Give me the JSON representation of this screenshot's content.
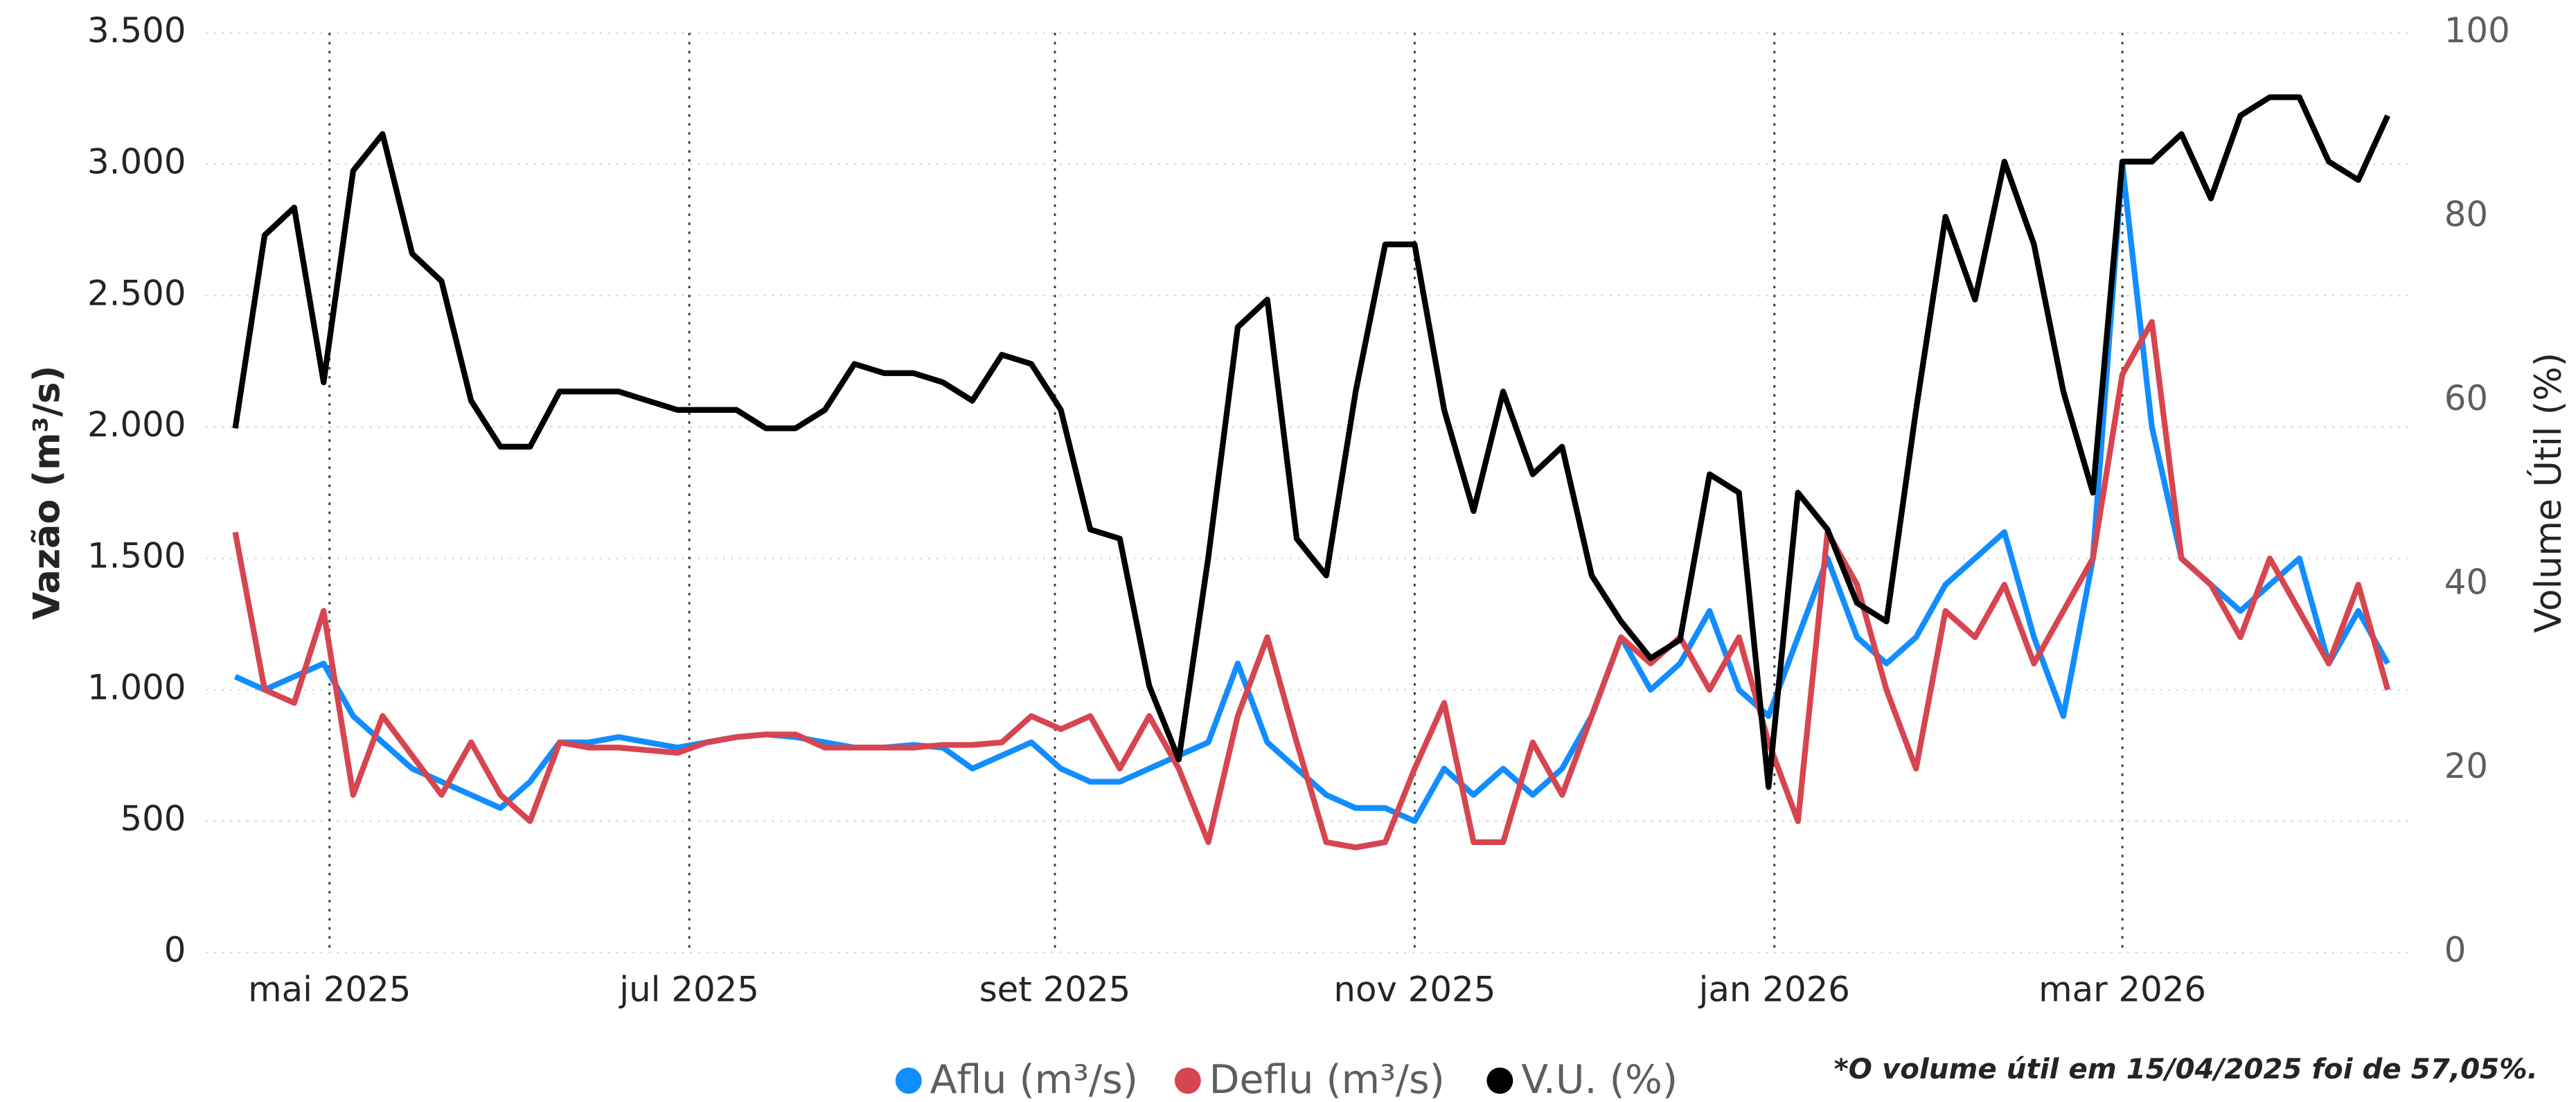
{
  "chart_data": {
    "type": "line",
    "y_label": "Vazão (m³/s)",
    "y2_label": "Volume Útil (%)",
    "annotation": "*O volume útil em 15/04/2025 foi de 57,05%.",
    "legend": "bottom",
    "grid": true,
    "xlim": [
      "2025-04-10",
      "2026-04-19"
    ],
    "xticks": [
      {
        "value": "2025-05-01",
        "label": "mai 2025"
      },
      {
        "value": "2025-07-01",
        "label": "jul 2025"
      },
      {
        "value": "2025-09-01",
        "label": "set 2025"
      },
      {
        "value": "2025-11-01",
        "label": "nov 2025"
      },
      {
        "value": "2026-01-01",
        "label": "jan 2026"
      },
      {
        "value": "2026-03-01",
        "label": "mar 2026"
      }
    ],
    "ylim": [
      0,
      3500
    ],
    "yticks": [
      0,
      500,
      {
        "value": 1000,
        "label": "1.000"
      },
      {
        "value": 1500,
        "label": "1.500"
      },
      {
        "value": 2000,
        "label": "2.000"
      },
      {
        "value": 2500,
        "label": "2.500"
      },
      {
        "value": 3000,
        "label": "3.000"
      },
      {
        "value": 3500,
        "label": "3.500"
      }
    ],
    "y2lim": [
      0,
      100
    ],
    "y2ticks": [
      0,
      20,
      40,
      60,
      80,
      100
    ],
    "x": [
      "2025-04-15",
      "2025-04-20",
      "2025-04-25",
      "2025-04-30",
      "2025-05-05",
      "2025-05-10",
      "2025-05-15",
      "2025-05-20",
      "2025-05-25",
      "2025-05-30",
      "2025-06-04",
      "2025-06-09",
      "2025-06-14",
      "2025-06-19",
      "2025-06-24",
      "2025-06-29",
      "2025-07-04",
      "2025-07-09",
      "2025-07-14",
      "2025-07-19",
      "2025-07-24",
      "2025-07-29",
      "2025-08-03",
      "2025-08-08",
      "2025-08-13",
      "2025-08-18",
      "2025-08-23",
      "2025-08-28",
      "2025-09-02",
      "2025-09-07",
      "2025-09-12",
      "2025-09-17",
      "2025-09-22",
      "2025-09-27",
      "2025-10-02",
      "2025-10-07",
      "2025-10-12",
      "2025-10-17",
      "2025-10-22",
      "2025-10-27",
      "2025-11-01",
      "2025-11-06",
      "2025-11-11",
      "2025-11-16",
      "2025-11-21",
      "2025-11-26",
      "2025-12-01",
      "2025-12-06",
      "2025-12-11",
      "2025-12-16",
      "2025-12-21",
      "2025-12-26",
      "2025-12-31",
      "2026-01-05",
      "2026-01-10",
      "2026-01-15",
      "2026-01-20",
      "2026-01-25",
      "2026-01-30",
      "2026-02-04",
      "2026-02-09",
      "2026-02-14",
      "2026-02-19",
      "2026-02-24",
      "2026-03-01",
      "2026-03-06",
      "2026-03-11",
      "2026-03-16",
      "2026-03-21",
      "2026-03-26",
      "2026-03-31",
      "2026-04-05",
      "2026-04-10",
      "2026-04-15"
    ],
    "series": [
      {
        "name": "Aflu (m³/s)",
        "color": "#118DFF",
        "values": [
          1050,
          1000,
          1050,
          1100,
          900,
          800,
          700,
          650,
          600,
          550,
          650,
          800,
          800,
          820,
          800,
          780,
          800,
          820,
          830,
          820,
          800,
          780,
          780,
          790,
          780,
          700,
          750,
          800,
          700,
          650,
          650,
          700,
          750,
          800,
          1100,
          800,
          700,
          600,
          550,
          550,
          500,
          700,
          600,
          700,
          600,
          700,
          900,
          1200,
          1000,
          1100,
          1300,
          1000,
          900,
          1200,
          1500,
          1200,
          1100,
          1200,
          1400,
          1500,
          1600,
          1200,
          900,
          1500,
          3000,
          2000,
          1500,
          1400,
          1300,
          1400,
          1500,
          1100,
          1300,
          1100
        ]
      },
      {
        "name": "Deflu (m³/s)",
        "color": "#D64550",
        "values": [
          1600,
          1000,
          950,
          1300,
          600,
          900,
          750,
          600,
          800,
          600,
          500,
          800,
          780,
          780,
          770,
          760,
          800,
          820,
          830,
          830,
          780,
          780,
          780,
          780,
          790,
          790,
          800,
          900,
          850,
          900,
          700,
          900,
          700,
          420,
          900,
          1200,
          800,
          420,
          400,
          420,
          700,
          950,
          420,
          420,
          800,
          600,
          900,
          1200,
          1100,
          1200,
          1000,
          1200,
          800,
          500,
          1600,
          1400,
          1000,
          700,
          1300,
          1200,
          1400,
          1100,
          1300,
          1500,
          2200,
          2400,
          1500,
          1400,
          1200,
          1500,
          1300,
          1100,
          1400,
          1000
        ]
      },
      {
        "name": "V.U. (%)",
        "color": "#000000",
        "axis": "y2",
        "values": [
          57,
          78,
          81,
          62,
          85,
          89,
          76,
          73,
          60,
          55,
          55,
          61,
          61,
          61,
          60,
          59,
          59,
          59,
          57,
          57,
          59,
          64,
          63,
          63,
          62,
          60,
          65,
          64,
          59,
          46,
          45,
          29,
          21,
          43,
          68,
          71,
          45,
          41,
          61,
          77,
          77,
          59,
          48,
          61,
          52,
          55,
          41,
          36,
          32,
          34,
          52,
          50,
          18,
          50,
          46,
          38,
          36,
          59,
          80,
          71,
          86,
          77,
          61,
          50,
          86,
          86,
          89,
          82,
          91,
          93,
          93,
          86,
          84,
          91
        ]
      }
    ]
  }
}
